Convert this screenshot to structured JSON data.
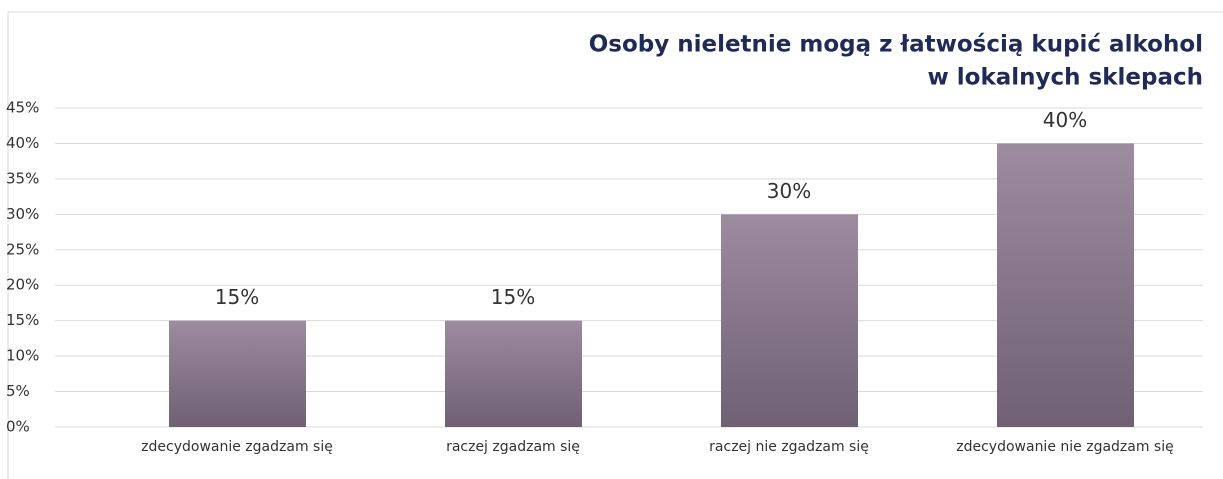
{
  "chart_data": {
    "type": "bar",
    "title": [
      "Osoby nieletnie mogą z łatwością kupić alkohol",
      "w lokalnych sklepach"
    ],
    "categories": [
      "zdecydowanie zgadzam się",
      "raczej zgadzam się",
      "raczej nie zgadzam się",
      "zdecydowanie nie zgadzam się"
    ],
    "values": [
      15,
      15,
      30,
      40
    ],
    "value_labels": [
      "15%",
      "15%",
      "30%",
      "40%"
    ],
    "color": "#8a7a8d",
    "ylim": [
      0,
      45
    ],
    "yticks": [
      {
        "value": 0,
        "label": "0%"
      },
      {
        "value": 5,
        "label": "5%"
      },
      {
        "value": 10,
        "label": "10%"
      },
      {
        "value": 15,
        "label": "15%"
      },
      {
        "value": 20,
        "label": "20%"
      },
      {
        "value": 25,
        "label": "25%"
      },
      {
        "value": 30,
        "label": "30%"
      },
      {
        "value": 35,
        "label": "35%"
      },
      {
        "value": 40,
        "label": "40%"
      },
      {
        "value": 45,
        "label": "45%"
      }
    ],
    "grid": true
  }
}
